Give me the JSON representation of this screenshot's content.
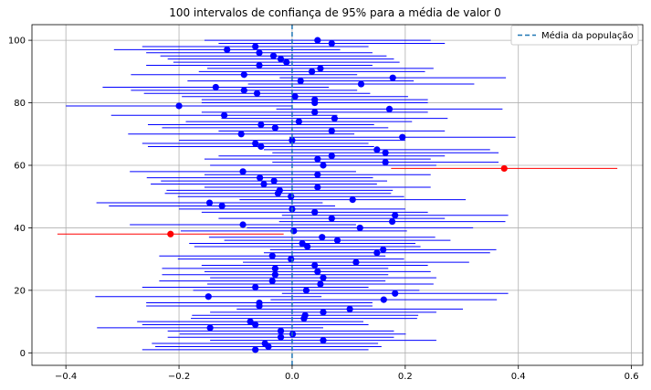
{
  "chart_data": {
    "type": "errorbar-scatter",
    "title": "100 intervalos de confiança de 95% para a média de valor 0",
    "xlim": [
      -0.46,
      0.62
    ],
    "ylim": [
      -4,
      105
    ],
    "xticks": [
      "−0.4",
      "−0.2",
      "0.0",
      "0.2",
      "0.4",
      "0.6"
    ],
    "xtick_values": [
      -0.4,
      -0.2,
      0.0,
      0.2,
      0.4,
      0.6
    ],
    "yticks": [
      "0",
      "20",
      "40",
      "60",
      "80",
      "100"
    ],
    "ytick_values": [
      0,
      20,
      40,
      60,
      80,
      100
    ],
    "grid": true,
    "legend_position": "top-right",
    "reference_line": {
      "x": 0.0,
      "label": "Média da população",
      "color": "#1f77b4",
      "style": "dashed"
    },
    "colors": {
      "covers": "#0000ff",
      "misses": "#ff0000"
    },
    "half_width": 0.2,
    "means": [
      -0.065,
      -0.042,
      -0.048,
      0.055,
      -0.02,
      0.001,
      -0.02,
      -0.145,
      -0.065,
      -0.074,
      0.021,
      0.023,
      0.055,
      0.102,
      -0.058,
      -0.058,
      0.162,
      -0.148,
      0.182,
      0.025,
      -0.065,
      0.05,
      -0.035,
      0.055,
      -0.03,
      0.045,
      -0.03,
      0.04,
      0.113,
      -0.002,
      -0.035,
      0.15,
      0.161,
      0.027,
      0.018,
      0.08,
      0.053,
      -0.215,
      0.003,
      0.12,
      -0.087,
      0.177,
      0.07,
      0.182,
      0.04,
      0.0,
      -0.124,
      -0.146,
      0.107,
      -0.002,
      -0.025,
      -0.022,
      0.045,
      -0.05,
      -0.032,
      -0.057,
      0.045,
      -0.087,
      0.375,
      0.055,
      0.165,
      0.045,
      0.07,
      0.165,
      0.15,
      -0.055,
      -0.065,
      0.0,
      0.195,
      -0.09,
      0.07,
      -0.03,
      -0.055,
      0.012,
      0.075,
      -0.12,
      0.04,
      0.172,
      -0.2,
      0.04,
      0.04,
      0.005,
      -0.062,
      -0.085,
      -0.135,
      0.122,
      0.015,
      0.178,
      -0.085,
      0.035,
      0.05,
      -0.058,
      -0.01,
      -0.02,
      -0.033,
      -0.058,
      -0.115,
      -0.065,
      0.07,
      0.045
    ]
  },
  "legend": {
    "label": "Média da população"
  }
}
